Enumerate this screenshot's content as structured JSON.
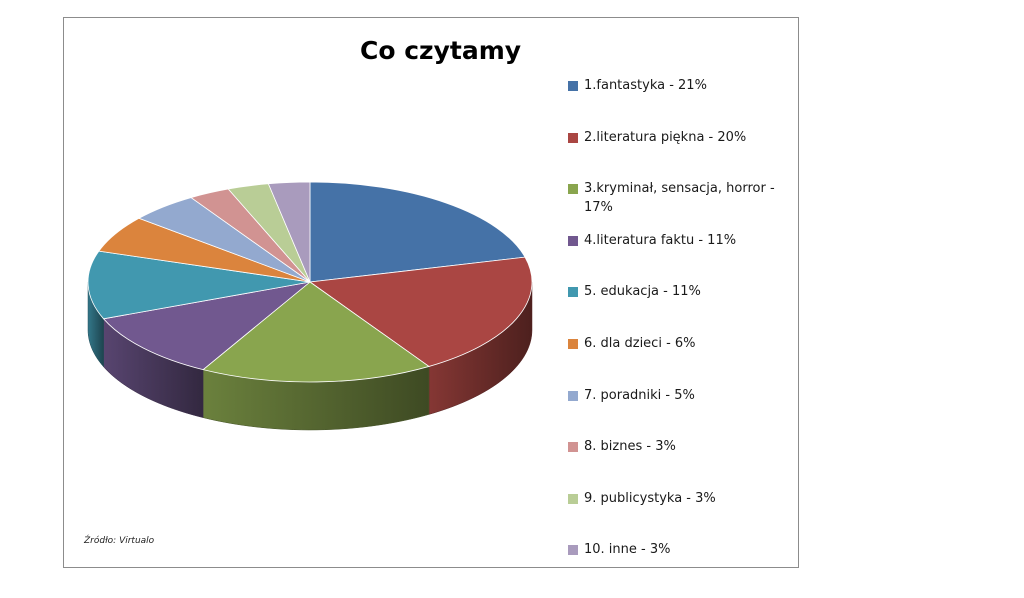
{
  "chart_data": {
    "type": "pie",
    "title": "Co czytamy",
    "source": "Źródło: Virtualo",
    "slices": [
      {
        "label": "1.fantastyka - 21%",
        "value": 21,
        "color": "#4572A7"
      },
      {
        "label": "2.literatura piękna - 20%",
        "value": 20,
        "color": "#AA4643"
      },
      {
        "label": "3.kryminał, sensacja, horror - 17%",
        "value": 17,
        "color": "#89A54E"
      },
      {
        "label": "4.literatura faktu - 11%",
        "value": 11,
        "color": "#71588F"
      },
      {
        "label": "5. edukacja - 11%",
        "value": 11,
        "color": "#4198AF"
      },
      {
        "label": "6. dla dzieci - 6%",
        "value": 6,
        "color": "#DB843D"
      },
      {
        "label": "7. poradniki - 5%",
        "value": 5,
        "color": "#93A9CF"
      },
      {
        "label": "8. biznes - 3%",
        "value": 3,
        "color": "#D19392"
      },
      {
        "label": "9. publicystyka - 3%",
        "value": 3,
        "color": "#B9CD96"
      },
      {
        "label": "10. inne - 3%",
        "value": 3,
        "color": "#A99BBD"
      }
    ],
    "legend_position": "right"
  }
}
